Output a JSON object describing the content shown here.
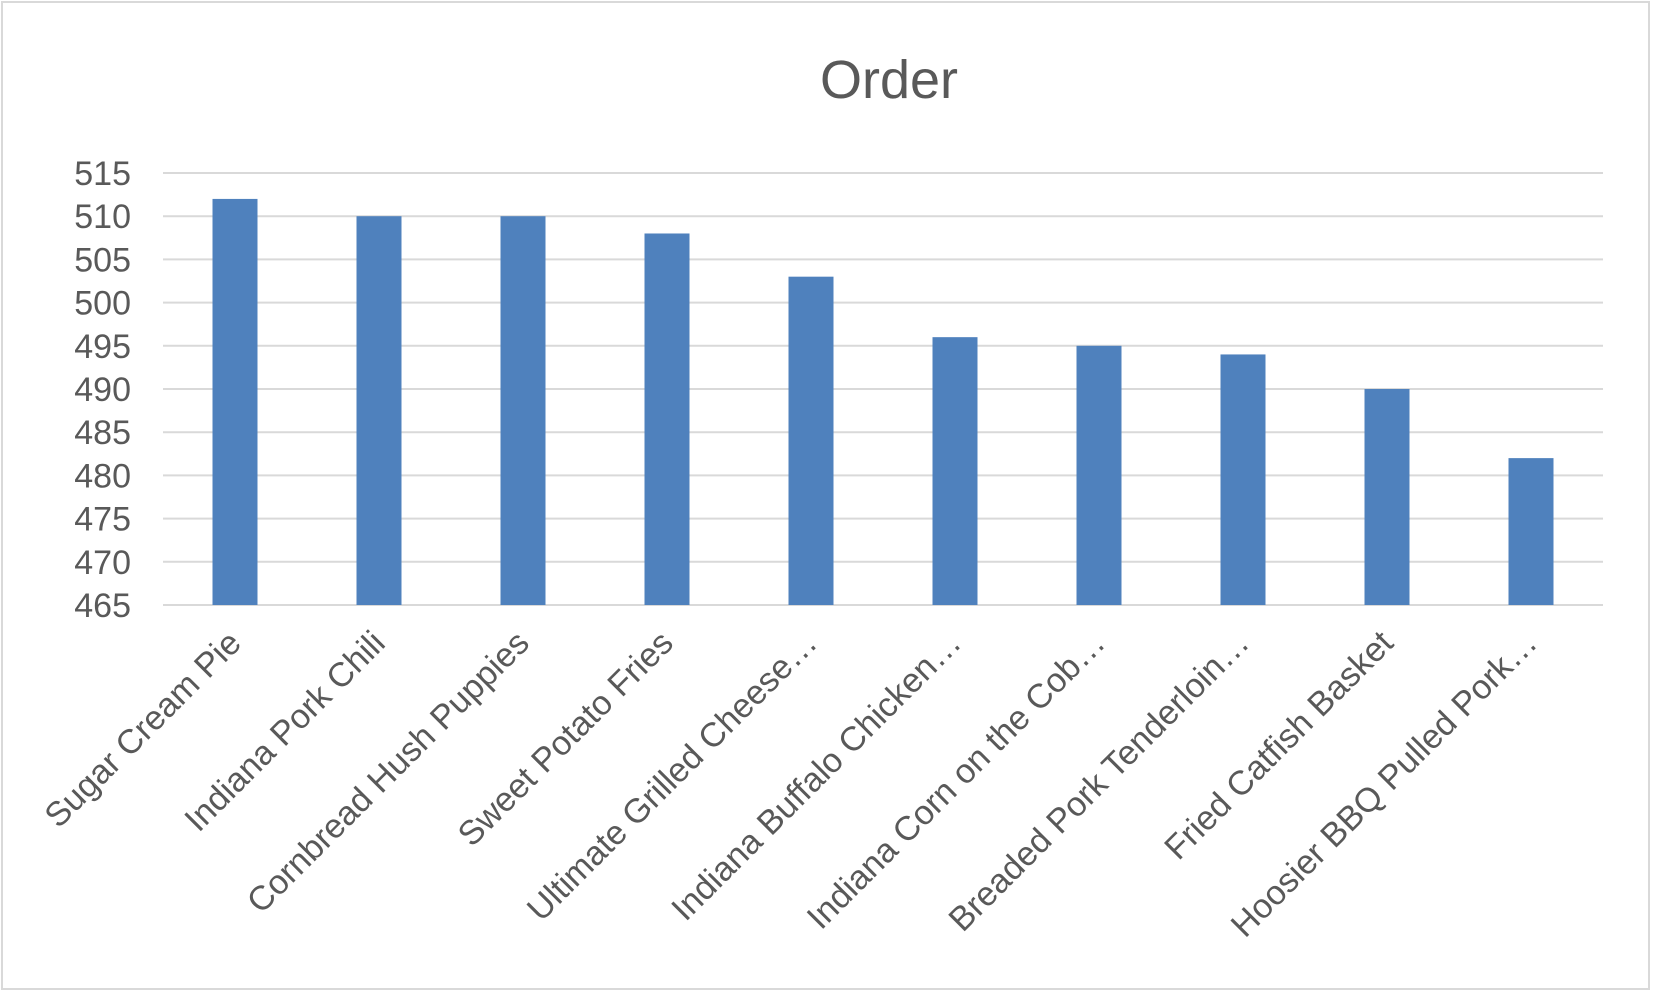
{
  "chart_data": {
    "type": "bar",
    "title": "Order",
    "xlabel": "",
    "ylabel": "",
    "ylim": [
      465,
      515
    ],
    "ytick_step": 5,
    "grid": true,
    "legend": "none",
    "bar_color": "#4f81bd",
    "categories": [
      "Sugar Cream Pie",
      "Indiana Pork Chili",
      "Cornbread Hush Puppies",
      "Sweet Potato Fries",
      "Ultimate Grilled Cheese…",
      "Indiana Buffalo Chicken…",
      "Indiana Corn on the Cob…",
      "Breaded Pork Tenderloin…",
      "Fried Catfish Basket",
      "Hoosier BBQ Pulled Pork…"
    ],
    "values": [
      512,
      510,
      510,
      508,
      503,
      496,
      495,
      494,
      490,
      482
    ]
  }
}
